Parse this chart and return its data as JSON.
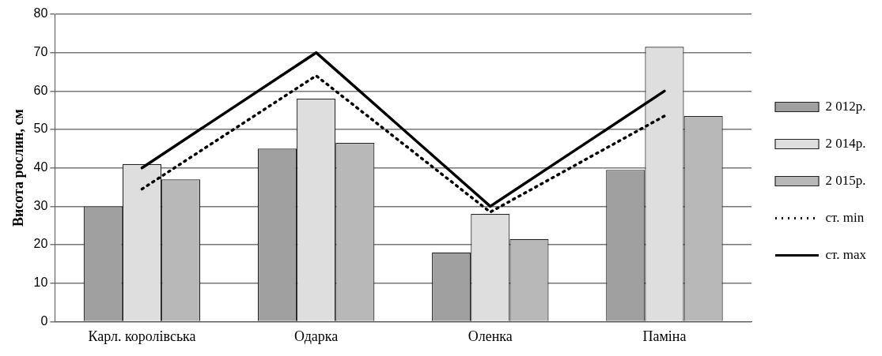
{
  "chart_data": {
    "type": "bar",
    "ylabel": "Висота рослин, см",
    "categories": [
      "Карл. королівська",
      "Одарка",
      "Оленка",
      "Паміна"
    ],
    "series": [
      {
        "name": "2 012р.",
        "color": "#a0a0a0",
        "values": [
          30,
          45,
          18,
          39.5
        ]
      },
      {
        "name": "2 014р.",
        "color": "#dedede",
        "values": [
          41,
          58,
          28,
          71.5
        ]
      },
      {
        "name": "2 015р.",
        "color": "#b8b8b8",
        "values": [
          37,
          46.5,
          21.5,
          53.5
        ]
      },
      {
        "name": "ст. min",
        "type": "line",
        "color": "#000000",
        "line_style": "dotted",
        "values": [
          34.5,
          64,
          28.5,
          53.5
        ]
      },
      {
        "name": "ст. max",
        "type": "line",
        "color": "#000000",
        "line_style": "solid",
        "values": [
          40,
          70,
          30,
          60
        ]
      }
    ],
    "ylim": [
      0,
      80
    ],
    "yticks": [
      0,
      10,
      20,
      30,
      40,
      50,
      60,
      70,
      80
    ],
    "grid": "y",
    "legend": "right",
    "marker": "none"
  }
}
